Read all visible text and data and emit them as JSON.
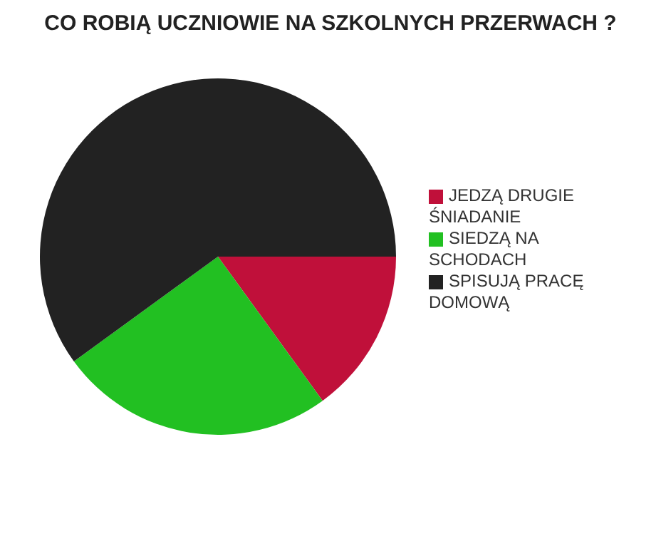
{
  "chart_data": {
    "type": "pie",
    "title": "CO ROBIĄ UCZNIOWIE NA SZKOLNYCH PRZERWACH ?",
    "categories": [
      "JEDZĄ DRUGIE ŚNIADANIE",
      "SIEDZĄ NA SCHODACH",
      "SPISUJĄ PRACĘ DOMOWĄ"
    ],
    "values": [
      15,
      25,
      60
    ],
    "colors": [
      "#c0103a",
      "#22c022",
      "#222222"
    ],
    "legend": "right"
  }
}
